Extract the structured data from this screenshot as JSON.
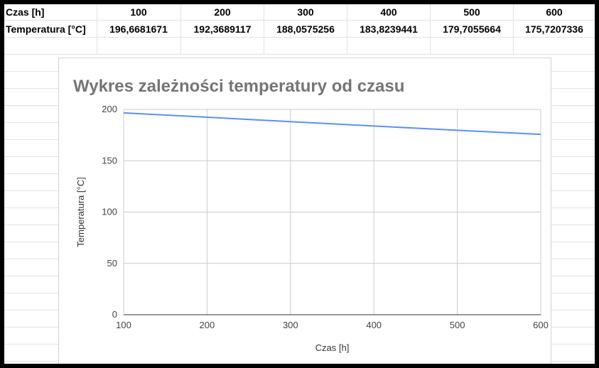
{
  "table": {
    "row1": [
      "Czas [h]",
      "100",
      "200",
      "300",
      "400",
      "500",
      "600"
    ],
    "row2": [
      "Temperatura [°C]",
      "196,6681671",
      "192,3689117",
      "188,0575256",
      "183,8239441",
      "179,7055664",
      "175,7207336"
    ]
  },
  "chart_data": {
    "type": "line",
    "title": "Wykres zależności temperatury od czasu",
    "xlabel": "Czas [h]",
    "ylabel": "Temperatura [°C]",
    "x": [
      100,
      200,
      300,
      400,
      500,
      600
    ],
    "series": [
      {
        "values": [
          196.6681671,
          192.3689117,
          188.0575256,
          183.8239441,
          179.7055664,
          175.7207336
        ],
        "color": "#5b8ff9"
      }
    ],
    "xlim": [
      100,
      600
    ],
    "ylim": [
      0,
      200
    ],
    "xticks": [
      "100",
      "200",
      "300",
      "400",
      "500",
      "600"
    ],
    "yticks": [
      "0",
      "50",
      "100",
      "150",
      "200"
    ],
    "grid": true,
    "legend": "none"
  }
}
